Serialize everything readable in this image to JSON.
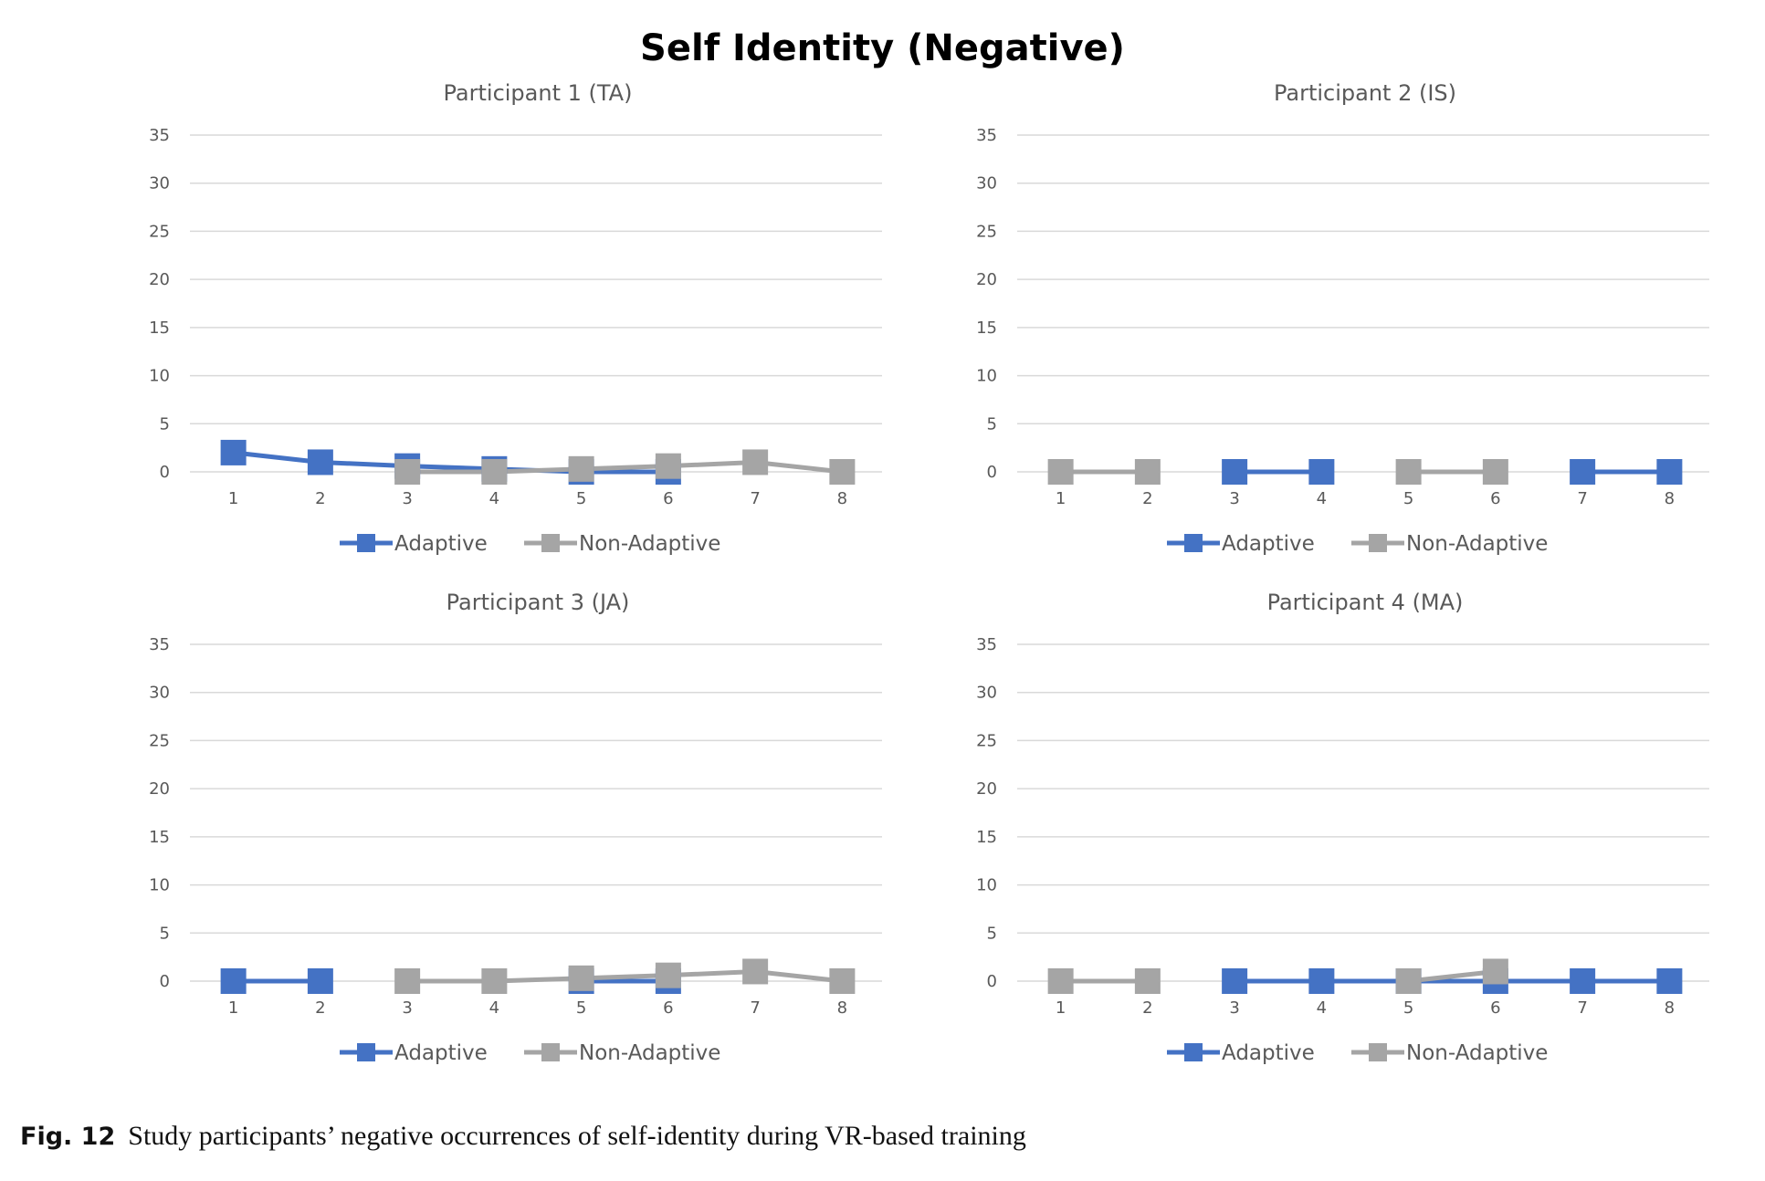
{
  "title": "Self Identity (Negative)",
  "caption": {
    "label": "Fig. 12",
    "text": "Study participants’ negative occurrences of self-identity during VR-based training"
  },
  "colors": {
    "adaptive": "#4472c4",
    "non_adaptive": "#a5a5a5",
    "grid": "#d9d9d9",
    "text": "#595959"
  },
  "chart_data": [
    {
      "type": "line",
      "title": "Participant 1 (TA)",
      "x": [
        1,
        2,
        3,
        4,
        5,
        6,
        7,
        8
      ],
      "ylim": [
        0,
        35
      ],
      "yticks": [
        0,
        5,
        10,
        15,
        20,
        25,
        30,
        35
      ],
      "grid": true,
      "legend": "bottom",
      "series": [
        {
          "name": "Adaptive",
          "color": "#4472c4",
          "values": [
            2,
            1,
            0.6,
            0.3,
            0,
            0,
            null,
            null
          ]
        },
        {
          "name": "Non-Adaptive",
          "color": "#a5a5a5",
          "values": [
            null,
            null,
            0,
            0,
            0.3,
            0.6,
            1,
            0
          ]
        }
      ]
    },
    {
      "type": "line",
      "title": "Participant 2 (IS)",
      "x": [
        1,
        2,
        3,
        4,
        5,
        6,
        7,
        8
      ],
      "ylim": [
        0,
        35
      ],
      "yticks": [
        0,
        5,
        10,
        15,
        20,
        25,
        30,
        35
      ],
      "grid": true,
      "legend": "bottom",
      "series": [
        {
          "name": "Adaptive",
          "color": "#4472c4",
          "values": [
            null,
            null,
            0,
            0,
            null,
            null,
            0,
            0
          ]
        },
        {
          "name": "Non-Adaptive",
          "color": "#a5a5a5",
          "values": [
            0,
            0,
            null,
            null,
            0,
            0,
            null,
            null
          ]
        }
      ]
    },
    {
      "type": "line",
      "title": "Participant 3 (JA)",
      "x": [
        1,
        2,
        3,
        4,
        5,
        6,
        7,
        8
      ],
      "ylim": [
        0,
        35
      ],
      "yticks": [
        0,
        5,
        10,
        15,
        20,
        25,
        30,
        35
      ],
      "grid": true,
      "legend": "bottom",
      "series": [
        {
          "name": "Adaptive",
          "color": "#4472c4",
          "values": [
            0,
            0,
            null,
            null,
            0,
            0,
            null,
            null
          ]
        },
        {
          "name": "Non-Adaptive",
          "color": "#a5a5a5",
          "values": [
            null,
            null,
            0,
            0,
            0.3,
            0.6,
            1,
            0
          ]
        }
      ]
    },
    {
      "type": "line",
      "title": "Participant 4 (MA)",
      "x": [
        1,
        2,
        3,
        4,
        5,
        6,
        7,
        8
      ],
      "ylim": [
        0,
        35
      ],
      "yticks": [
        0,
        5,
        10,
        15,
        20,
        25,
        30,
        35
      ],
      "grid": true,
      "legend": "bottom",
      "series": [
        {
          "name": "Adaptive",
          "color": "#4472c4",
          "values": [
            null,
            null,
            0,
            0,
            0,
            0,
            0,
            0
          ]
        },
        {
          "name": "Non-Adaptive",
          "color": "#a5a5a5",
          "values": [
            0,
            0,
            null,
            null,
            0,
            1,
            null,
            null
          ]
        }
      ]
    }
  ]
}
